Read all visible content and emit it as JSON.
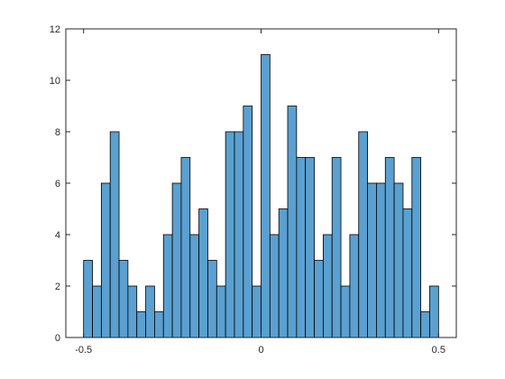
{
  "chart_data": {
    "type": "histogram",
    "title": "",
    "xlabel": "",
    "ylabel": "",
    "xlim": [
      -0.55,
      0.55
    ],
    "ylim": [
      0,
      12
    ],
    "grid": false,
    "box": true,
    "bar_color": "#5aa0d0",
    "edge_color": "#000000",
    "bin_start": -0.5,
    "bin_width": 0.025,
    "counts": [
      3,
      2,
      6,
      8,
      3,
      2,
      1,
      2,
      1,
      4,
      6,
      7,
      4,
      5,
      3,
      2,
      8,
      8,
      9,
      2,
      11,
      4,
      5,
      9,
      7,
      7,
      3,
      4,
      7,
      2,
      4,
      8,
      6,
      6,
      7,
      6,
      5,
      7,
      1,
      2
    ],
    "xticks": [
      -0.5,
      0,
      0.5
    ],
    "xtick_labels": [
      "-0.5",
      "0",
      "0.5"
    ],
    "yticks": [
      0,
      2,
      4,
      6,
      8,
      10,
      12
    ],
    "ytick_labels": [
      "0",
      "2",
      "4",
      "6",
      "8",
      "10",
      "12"
    ]
  }
}
